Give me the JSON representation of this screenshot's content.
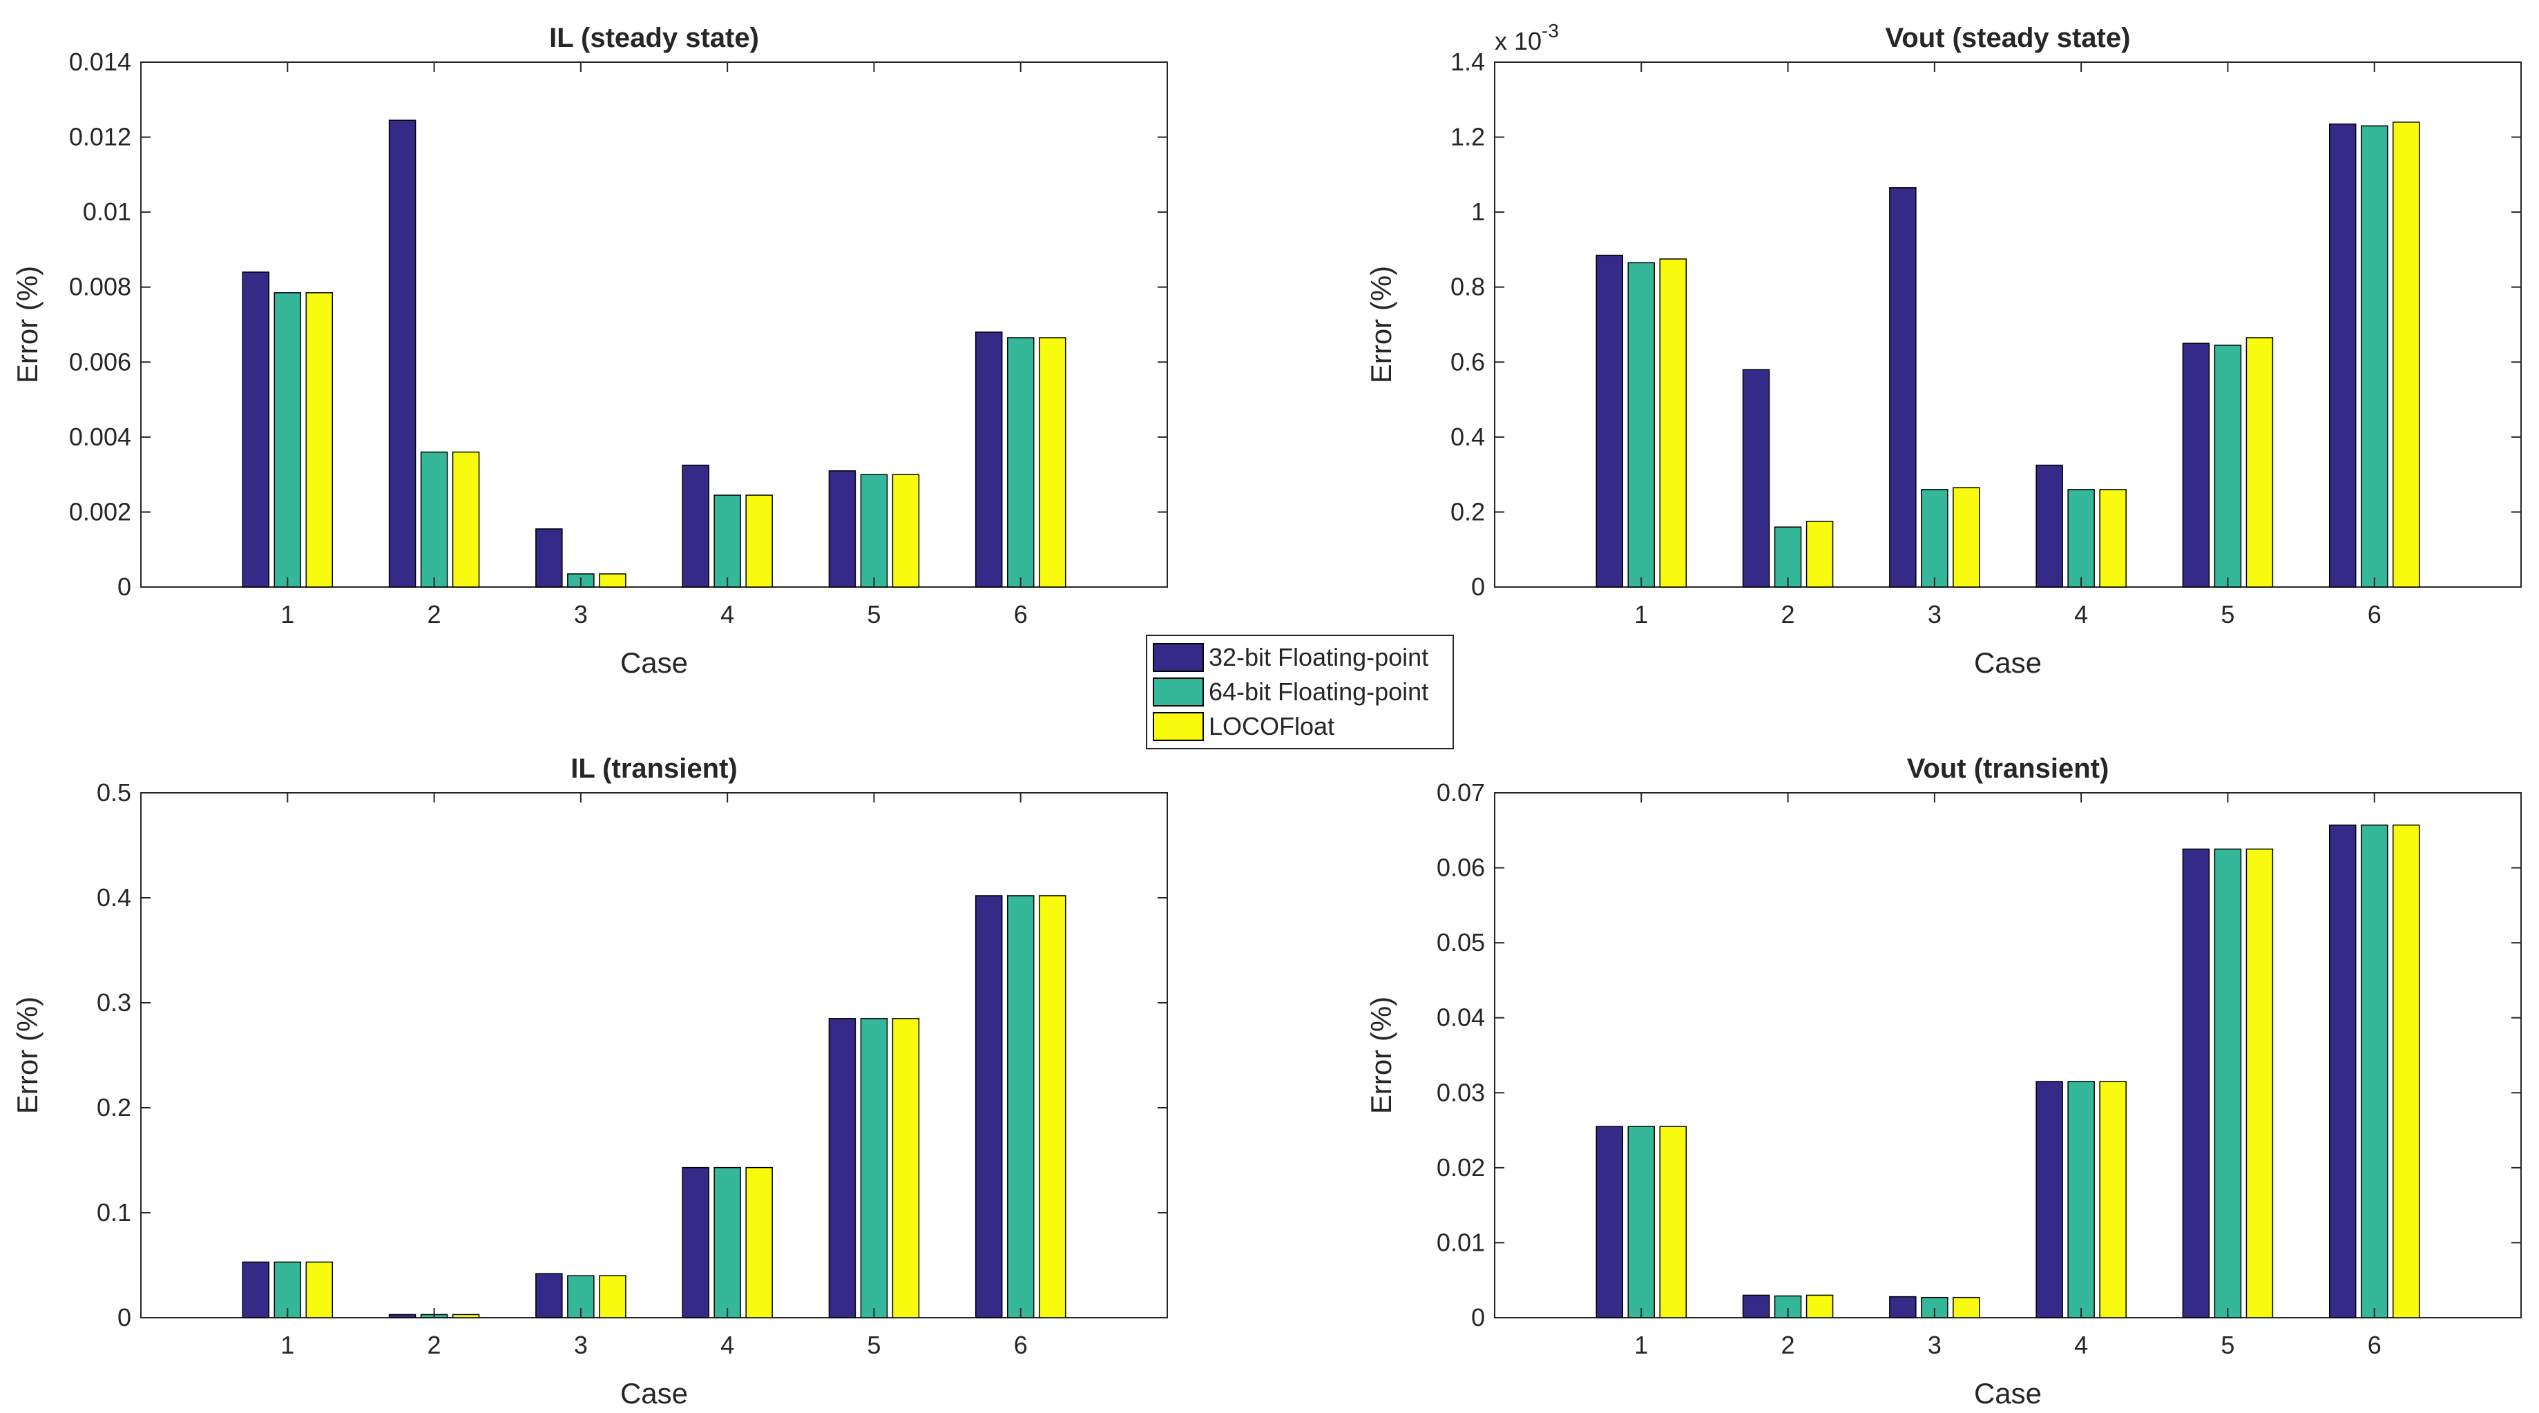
{
  "legend": [
    {
      "name": "32-bit Floating-point",
      "color": "#352a87"
    },
    {
      "name": "64-bit Floating-point",
      "color": "#35b79a"
    },
    {
      "name": "LOCOFloat",
      "color": "#f9fb0e"
    }
  ],
  "chart_data": [
    {
      "type": "bar",
      "title": "IL (steady state)",
      "xlabel": "Case",
      "ylabel": "Error (%)",
      "categories": [
        "1",
        "2",
        "3",
        "4",
        "5",
        "6"
      ],
      "xlim": [
        0,
        7
      ],
      "ylim": [
        0,
        0.014
      ],
      "yticks": [
        0,
        0.002,
        0.004,
        0.006,
        0.008,
        0.01,
        0.012,
        0.014
      ],
      "ytick_labels": [
        "0",
        "0.002",
        "0.004",
        "0.006",
        "0.008",
        "0.01",
        "0.012",
        "0.014"
      ],
      "exponent_label": "",
      "series": [
        {
          "name": "32-bit Floating-point",
          "values": [
            0.0084,
            0.01245,
            0.00155,
            0.00325,
            0.0031,
            0.0068
          ]
        },
        {
          "name": "64-bit Floating-point",
          "values": [
            0.00785,
            0.0036,
            0.00035,
            0.00245,
            0.003,
            0.00665
          ]
        },
        {
          "name": "LOCOFloat",
          "values": [
            0.00785,
            0.0036,
            0.00035,
            0.00245,
            0.003,
            0.00665
          ]
        }
      ]
    },
    {
      "type": "bar",
      "title": "Vout (steady state)",
      "xlabel": "Case",
      "ylabel": "Error (%)",
      "categories": [
        "1",
        "2",
        "3",
        "4",
        "5",
        "6"
      ],
      "xlim": [
        0,
        7
      ],
      "ylim": [
        0,
        1.4
      ],
      "yticks": [
        0,
        0.2,
        0.4,
        0.6,
        0.8,
        1,
        1.2,
        1.4
      ],
      "ytick_labels": [
        "0",
        "0.2",
        "0.4",
        "0.6",
        "0.8",
        "1",
        "1.2",
        "1.4"
      ],
      "exponent_label": "x 10",
      "exponent_power": "-3",
      "series": [
        {
          "name": "32-bit Floating-point",
          "values": [
            0.885,
            0.58,
            1.065,
            0.325,
            0.65,
            1.235
          ]
        },
        {
          "name": "64-bit Floating-point",
          "values": [
            0.865,
            0.16,
            0.26,
            0.26,
            0.645,
            1.23
          ]
        },
        {
          "name": "LOCOFloat",
          "values": [
            0.875,
            0.175,
            0.265,
            0.26,
            0.665,
            1.24
          ]
        }
      ]
    },
    {
      "type": "bar",
      "title": "IL (transient)",
      "xlabel": "Case",
      "ylabel": "Error (%)",
      "categories": [
        "1",
        "2",
        "3",
        "4",
        "5",
        "6"
      ],
      "xlim": [
        0,
        7
      ],
      "ylim": [
        0,
        0.5
      ],
      "yticks": [
        0,
        0.1,
        0.2,
        0.3,
        0.4,
        0.5
      ],
      "ytick_labels": [
        "0",
        "0.1",
        "0.2",
        "0.3",
        "0.4",
        "0.5"
      ],
      "exponent_label": "",
      "series": [
        {
          "name": "32-bit Floating-point",
          "values": [
            0.053,
            0.003,
            0.042,
            0.143,
            0.285,
            0.402
          ]
        },
        {
          "name": "64-bit Floating-point",
          "values": [
            0.053,
            0.003,
            0.04,
            0.143,
            0.285,
            0.402
          ]
        },
        {
          "name": "LOCOFloat",
          "values": [
            0.053,
            0.003,
            0.04,
            0.143,
            0.285,
            0.402
          ]
        }
      ]
    },
    {
      "type": "bar",
      "title": "Vout (transient)",
      "xlabel": "Case",
      "ylabel": "Error (%)",
      "categories": [
        "1",
        "2",
        "3",
        "4",
        "5",
        "6"
      ],
      "xlim": [
        0,
        7
      ],
      "ylim": [
        0,
        0.07
      ],
      "yticks": [
        0,
        0.01,
        0.02,
        0.03,
        0.04,
        0.05,
        0.06,
        0.07
      ],
      "ytick_labels": [
        "0",
        "0.01",
        "0.02",
        "0.03",
        "0.04",
        "0.05",
        "0.06",
        "0.07"
      ],
      "exponent_label": "",
      "series": [
        {
          "name": "32-bit Floating-point",
          "values": [
            0.0255,
            0.003,
            0.0028,
            0.0315,
            0.0625,
            0.0657
          ]
        },
        {
          "name": "64-bit Floating-point",
          "values": [
            0.0255,
            0.0029,
            0.0027,
            0.0315,
            0.0625,
            0.0657
          ]
        },
        {
          "name": "LOCOFloat",
          "values": [
            0.0255,
            0.003,
            0.0027,
            0.0315,
            0.0625,
            0.0657
          ]
        }
      ]
    }
  ]
}
